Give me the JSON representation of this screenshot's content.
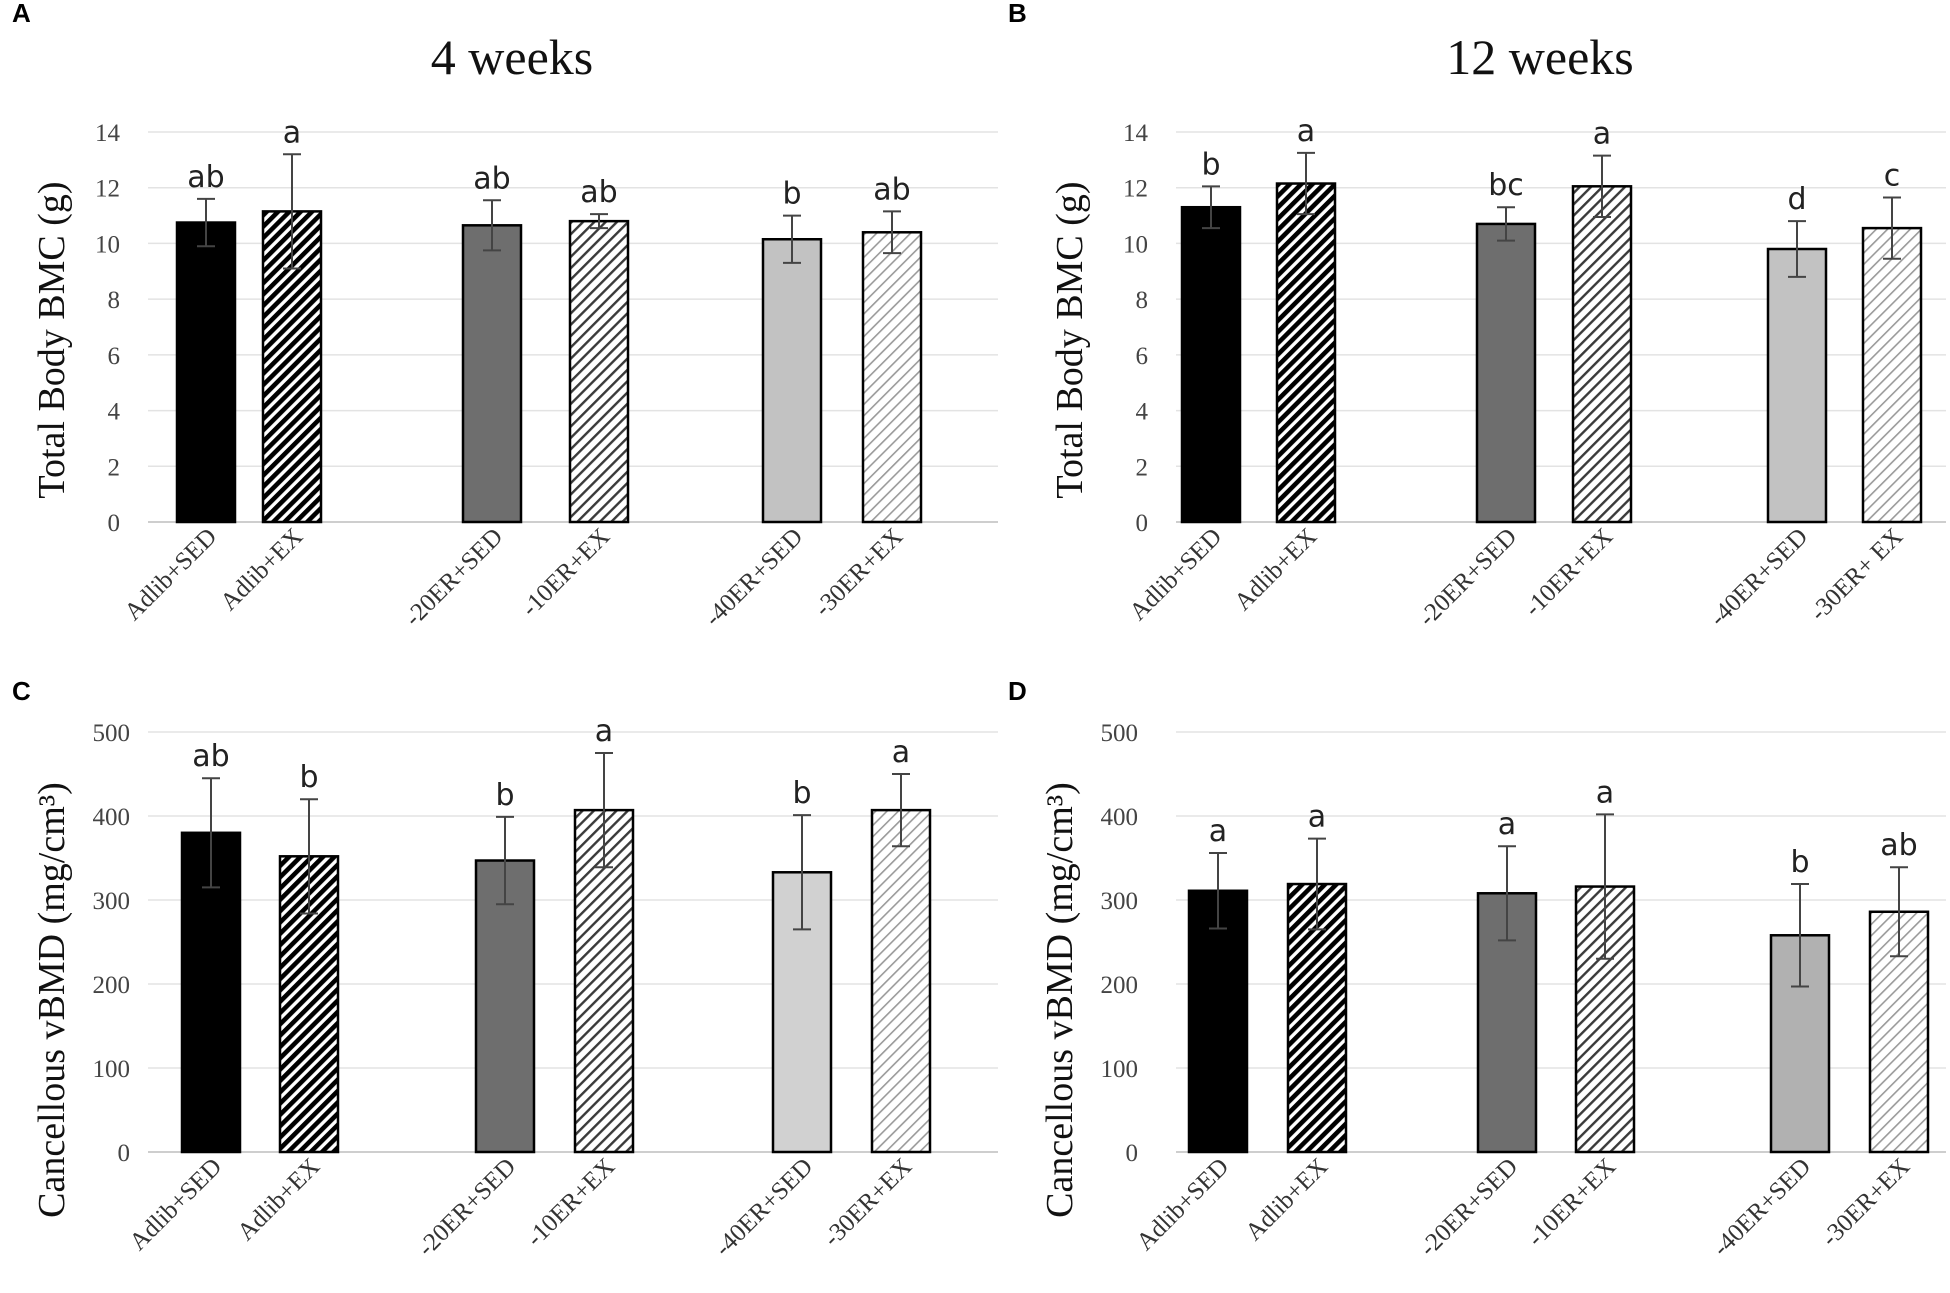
{
  "chart_data": [
    {
      "panel": "A",
      "type": "bar",
      "title": "4 weeks",
      "ylabel": "Total Body BMC (g)",
      "ylim": [
        0,
        14
      ],
      "yticks": [
        0,
        2,
        4,
        6,
        8,
        10,
        12,
        14
      ],
      "grid": true,
      "categories": [
        "Adlib+SED",
        "Adlib+EX",
        "-20ER+SED",
        "-10ER+EX",
        "-40ER+SED",
        "-30ER+EX"
      ],
      "values": [
        10.75,
        11.15,
        10.65,
        10.8,
        10.15,
        10.4
      ],
      "errors": [
        0.85,
        2.05,
        0.9,
        0.25,
        0.85,
        0.75
      ],
      "letters": [
        "ab",
        "a",
        "ab",
        "ab",
        "b",
        "ab"
      ]
    },
    {
      "panel": "B",
      "type": "bar",
      "title": "12 weeks",
      "ylabel": "Total Body BMC (g)",
      "ylim": [
        0,
        14
      ],
      "yticks": [
        0,
        2,
        4,
        6,
        8,
        10,
        12,
        14
      ],
      "grid": true,
      "categories": [
        "Adlib+SED",
        "Adlib+EX",
        "-20ER+SED",
        "-10ER+EX",
        "-40ER+SED",
        "-30ER+ EX"
      ],
      "values": [
        11.3,
        12.15,
        10.7,
        12.05,
        9.8,
        10.55
      ],
      "errors": [
        0.75,
        1.1,
        0.6,
        1.1,
        1.0,
        1.1
      ],
      "letters": [
        "b",
        "a",
        "bc",
        "a",
        "d",
        "c"
      ]
    },
    {
      "panel": "C",
      "type": "bar",
      "title": "",
      "ylabel": "Cancellous vBMD (mg/cm³)",
      "ylim": [
        0,
        500
      ],
      "yticks": [
        0,
        100,
        200,
        300,
        400,
        500
      ],
      "grid": true,
      "categories": [
        "Adlib+SED",
        "Adlib+EX",
        "-20ER+SED",
        "-10ER+EX",
        "-40ER+SED",
        "-30ER+EX"
      ],
      "values": [
        380,
        352,
        347,
        407,
        333,
        407
      ],
      "errors": [
        65,
        68,
        52,
        68,
        68,
        43
      ],
      "letters": [
        "ab",
        "b",
        "b",
        "a",
        "b",
        "a"
      ]
    },
    {
      "panel": "D",
      "type": "bar",
      "title": "",
      "ylabel": "Cancellous vBMD (mg/cm³)",
      "ylim": [
        0,
        500
      ],
      "yticks": [
        0,
        100,
        200,
        300,
        400,
        500
      ],
      "grid": true,
      "categories": [
        "Adlib+SED",
        "Adlib+EX",
        "-20ER+SED",
        "-10ER+EX",
        "-40ER+SED",
        "-30ER+EX"
      ],
      "values": [
        311,
        319,
        308,
        316,
        258,
        286
      ],
      "errors": [
        45,
        54,
        56,
        86,
        61,
        53
      ],
      "letters": [
        "a",
        "a",
        "a",
        "a",
        "b",
        "ab"
      ]
    }
  ],
  "colors": {
    "adlib_sed": "#000000",
    "adlib_ex_hatch": "#000000",
    "er20_sed": "#6e6e6e",
    "er10_ex_hatch": "#555555",
    "er40_sed_light": "#c4c4c4",
    "er30_ex_hatch": "#a8a8a8"
  }
}
